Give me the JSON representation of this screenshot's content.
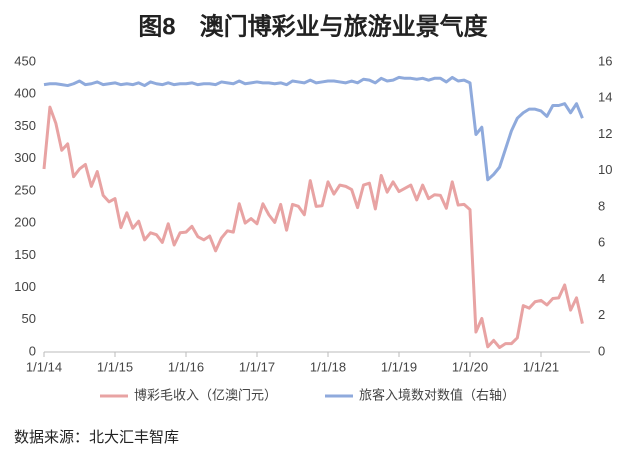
{
  "chart_data": {
    "type": "line",
    "title": "图8　澳门博彩业与旅游业景气度",
    "source": "数据来源：北大汇丰智库",
    "categories": [
      "1/1/14",
      null,
      null,
      null,
      null,
      null,
      null,
      null,
      null,
      null,
      null,
      null,
      "1/1/15",
      null,
      null,
      null,
      null,
      null,
      null,
      null,
      null,
      null,
      null,
      null,
      "1/1/16",
      null,
      null,
      null,
      null,
      null,
      null,
      null,
      null,
      null,
      null,
      null,
      "1/1/17",
      null,
      null,
      null,
      null,
      null,
      null,
      null,
      null,
      null,
      null,
      null,
      "1/1/18",
      null,
      null,
      null,
      null,
      null,
      null,
      null,
      null,
      null,
      null,
      null,
      "1/1/19",
      null,
      null,
      null,
      null,
      null,
      null,
      null,
      null,
      null,
      null,
      null,
      "1/1/20",
      null,
      null,
      null,
      null,
      null,
      null,
      null,
      null,
      null,
      null,
      null,
      "1/1/21",
      null,
      null,
      null,
      null,
      null,
      null,
      null
    ],
    "series": [
      {
        "name": "博彩毛收入（亿澳门元）",
        "color": "#e8a3a3",
        "axis": "y",
        "values": [
          284,
          380,
          355,
          313,
          323,
          272,
          284,
          291,
          257,
          280,
          243,
          233,
          238,
          193,
          216,
          192,
          203,
          174,
          185,
          182,
          170,
          199,
          166,
          185,
          186,
          195,
          179,
          174,
          180,
          157,
          177,
          188,
          186,
          230,
          200,
          207,
          199,
          230,
          213,
          201,
          229,
          189,
          229,
          226,
          213,
          266,
          226,
          227,
          264,
          245,
          259,
          257,
          252,
          224,
          259,
          262,
          222,
          274,
          248,
          264,
          249,
          254,
          259,
          236,
          259,
          238,
          244,
          243,
          223,
          264,
          228,
          229,
          221,
          31,
          52,
          8,
          18,
          7,
          13,
          13,
          22,
          72,
          68,
          78,
          80,
          73,
          83,
          84,
          104,
          65,
          84,
          44
        ]
      },
      {
        "name": "旅客入境数对数值（右轴）",
        "color": "#8faadc",
        "axis": "y2",
        "values": [
          14.75,
          14.8,
          14.8,
          14.75,
          14.7,
          14.8,
          14.95,
          14.75,
          14.8,
          14.9,
          14.75,
          14.8,
          14.85,
          14.75,
          14.8,
          14.75,
          14.85,
          14.7,
          14.9,
          14.8,
          14.75,
          14.85,
          14.75,
          14.8,
          14.8,
          14.85,
          14.75,
          14.8,
          14.8,
          14.75,
          14.9,
          14.85,
          14.8,
          14.95,
          14.8,
          14.85,
          14.9,
          14.85,
          14.85,
          14.8,
          14.85,
          14.75,
          14.95,
          14.9,
          14.85,
          15.0,
          14.85,
          14.9,
          14.95,
          14.95,
          14.9,
          14.85,
          14.95,
          14.85,
          15.05,
          15.0,
          14.85,
          15.1,
          14.95,
          15.0,
          15.15,
          15.1,
          15.1,
          15.05,
          15.1,
          15.0,
          15.1,
          15.1,
          14.9,
          15.15,
          14.95,
          15.0,
          14.85,
          12.0,
          12.4,
          9.5,
          9.8,
          10.2,
          11.2,
          12.2,
          12.9,
          13.2,
          13.4,
          13.4,
          13.3,
          13.0,
          13.6,
          13.6,
          13.7,
          13.2,
          13.7,
          12.9
        ]
      }
    ],
    "ylim": [
      0,
      450
    ],
    "yticks": [
      0,
      50,
      100,
      150,
      200,
      250,
      300,
      350,
      400,
      450
    ],
    "y2lim": [
      0,
      16
    ],
    "y2ticks": [
      0,
      2,
      4,
      6,
      8,
      10,
      12,
      14,
      16
    ],
    "grid": false
  }
}
